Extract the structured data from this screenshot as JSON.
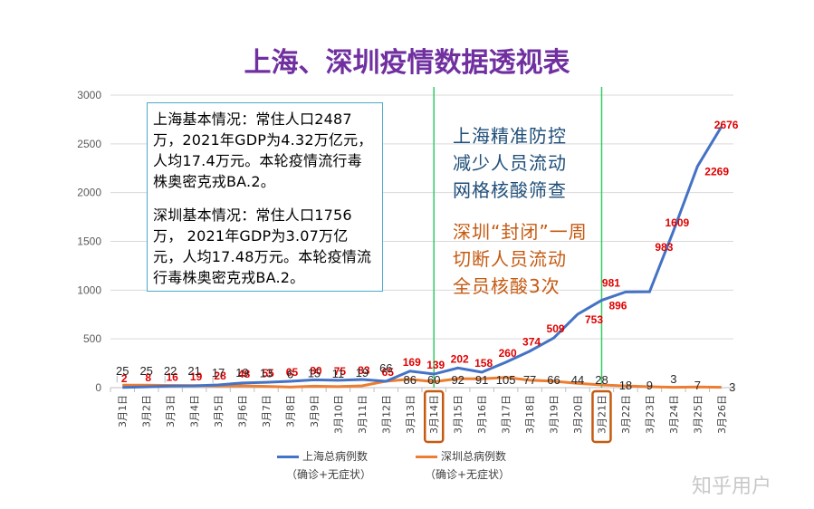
{
  "title": "上海、深圳疫情数据透视表",
  "info": {
    "shanghai": "上海基本情况：常住人口2487万，2021年GDP为4.32万亿元，人均17.4万元。本轮疫情流行毒株奥密克戎BA.2。",
    "shenzhen": "深圳基本情况：常住人口1756万，  2021年GDP为3.07万亿元，人均17.48万元。本轮疫情流行毒株奥密克戎BA.2。"
  },
  "annotations": {
    "shanghai_measures": [
      "上海精准防控",
      "减少人员流动",
      "网格核酸筛查"
    ],
    "shenzhen_measures": [
      "深圳“封闭”一周",
      "切断人员流动",
      "全员核酸3次"
    ]
  },
  "legend": {
    "shanghai_name": "上海总病例数",
    "shanghai_sub": "（确诊+无症状）",
    "shenzhen_name": "深圳总病例数",
    "shenzhen_sub": "（确诊+无症状）"
  },
  "watermark": "知乎用户",
  "colors": {
    "shanghai": "#4472C4",
    "shenzhen": "#ED7D31",
    "label_red": "#E00000",
    "marker_green": "#33CC66",
    "highlight": "#C55A11"
  },
  "chart_data": {
    "type": "line",
    "title": "上海、深圳疫情数据透视表",
    "x": [
      "3月1日",
      "3月2日",
      "3月3日",
      "3月4日",
      "3月5日",
      "3月6日",
      "3月7日",
      "3月8日",
      "3月9日",
      "3月10日",
      "3月11日",
      "3月12日",
      "3月13日",
      "3月14日",
      "3月15日",
      "3月16日",
      "3月17日",
      "3月18日",
      "3月19日",
      "3月20日",
      "3月21日",
      "3月22日",
      "3月23日",
      "3月24日",
      "3月25日",
      "3月26日"
    ],
    "ylim": [
      0,
      3000
    ],
    "yticks": [
      0,
      500,
      1000,
      1500,
      2000,
      2500,
      3000
    ],
    "grid": true,
    "legend_position": "bottom",
    "highlighted_dates": [
      "3月14日",
      "3月21日"
    ],
    "series": [
      {
        "name": "上海总病例数",
        "values": [
          2,
          8,
          16,
          19,
          28,
          48,
          55,
          65,
          80,
          75,
          83,
          65,
          169,
          139,
          202,
          158,
          260,
          374,
          509,
          753,
          896,
          981,
          983,
          1609,
          2269,
          2676
        ],
        "labels": [
          "2",
          "8",
          "16",
          "19",
          "28",
          "48",
          "55",
          "65",
          "80",
          "75",
          "83",
          "65",
          "169",
          "139",
          "202",
          "158",
          "260",
          "374",
          "509",
          "753",
          "896",
          "981",
          "983",
          "1609",
          "2269",
          "2676"
        ]
      },
      {
        "name": "深圳总病例数",
        "values": [
          25,
          25,
          22,
          21,
          17,
          19,
          13,
          6,
          15,
          11,
          19,
          66,
          86,
          60,
          92,
          91,
          105,
          77,
          66,
          44,
          28,
          18,
          9,
          3,
          7,
          3
        ],
        "labels": [
          "25",
          "25",
          "22",
          "21",
          "17",
          "19",
          "13",
          "6",
          "15",
          "11",
          "19",
          "66",
          "86",
          "60",
          "92",
          "91",
          "105",
          "77",
          "66",
          "44",
          "28",
          "18",
          "9",
          "3",
          "7",
          "3"
        ]
      }
    ]
  }
}
